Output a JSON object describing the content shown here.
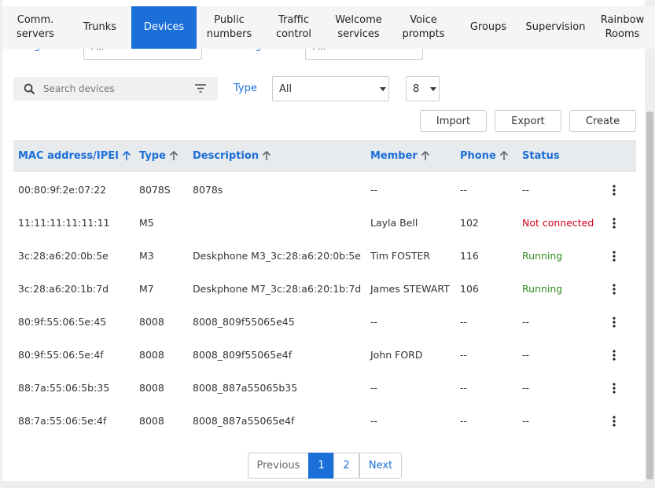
{
  "tabs": [
    "Comm. servers",
    "Trunks",
    "Devices",
    "Public numbers",
    "Traffic control",
    "Welcome services",
    "Voice prompts",
    "Groups",
    "Supervision",
    "Rainbow Rooms"
  ],
  "active_tab": 2,
  "filters": {
    "assignation_label": "Assignation",
    "assignation_value": "All",
    "blocking_label": "Blocking status",
    "blocking_value": "All"
  },
  "search_placeholder": "Search devices",
  "type_label": "Type",
  "type_value": "All",
  "page_size": "8",
  "buttons": [
    "Import",
    "Export",
    "Create"
  ],
  "table": {
    "headers": [
      "MAC address/IPEI",
      "Type",
      "Description",
      "Member",
      "Phone",
      "Status"
    ],
    "rows": [
      [
        "00:80:9f:2e:07:22",
        "8078S",
        "8078s",
        "--",
        "--",
        "--"
      ],
      [
        "11:11:11:11:11:11",
        "M5",
        null,
        "Layla Bell",
        "102",
        "Not connected"
      ],
      [
        "3c:28:a6:20:0b:5e",
        "M3",
        "Deskphone M3_3c:28:a6:20:0b:5e",
        "Tim FOSTER",
        "116",
        "Running"
      ],
      [
        "3c:28:a6:20:1b:7d",
        "M7",
        "Deskphone M7_3c:28:a6:20:1b:7d",
        "James STEWART",
        "106",
        "Running"
      ],
      [
        "80:9f:55:06:5e:45",
        "8008",
        "8008_809f55065e45",
        "--",
        "--",
        "--"
      ],
      [
        "80:9f:55:06:5e:4f",
        "8008",
        "8008_809f55065e4f",
        "John FORD",
        "--",
        "--"
      ],
      [
        "88:7a:55:06:5b:35",
        "8008",
        "8008_887a55065b35",
        "--",
        "--",
        "--"
      ],
      [
        "88:7a:55:06:5e:4f",
        "8008",
        "8008_887a55065e4f",
        "--",
        "--",
        "--"
      ]
    ]
  },
  "pagination": {
    "previous": "Previous",
    "pages": [
      "1",
      "2"
    ],
    "current": 0,
    "next": "Next"
  }
}
